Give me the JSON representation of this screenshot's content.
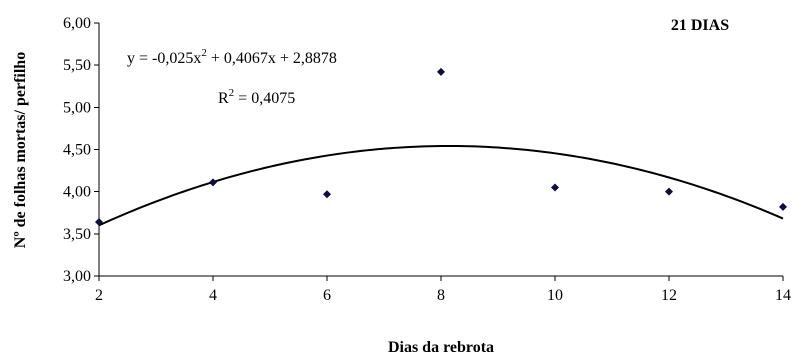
{
  "chart_data": {
    "type": "scatter",
    "panel_label": "21 DIAS",
    "xlabel": "Dias da rebrota",
    "ylabel": "Nº de folhas mortas/ perfilho",
    "xlim": [
      2,
      14
    ],
    "ylim": [
      3.0,
      6.0
    ],
    "x_ticks": [
      2,
      4,
      6,
      8,
      10,
      12,
      14
    ],
    "x_tick_labels": [
      "2",
      "4",
      "6",
      "8",
      "10",
      "12",
      "14"
    ],
    "y_ticks": [
      3.0,
      3.5,
      4.0,
      4.5,
      5.0,
      5.5,
      6.0
    ],
    "y_tick_labels": [
      "3,00",
      "3,50",
      "4,00",
      "4,50",
      "5,00",
      "5,50",
      "6,00"
    ],
    "grid": false,
    "legend": "none",
    "series": [
      {
        "marker": "diamond",
        "color": "#0d0d45",
        "x": [
          2,
          4,
          6,
          8,
          10,
          12,
          14
        ],
        "y": [
          3.64,
          4.11,
          3.97,
          5.42,
          4.05,
          4.0,
          3.82
        ]
      }
    ],
    "trendline": {
      "type": "polynomial",
      "coefficients": {
        "a": -0.025,
        "b": 0.4067,
        "c": 2.8878
      },
      "color": "#000000"
    },
    "equation": {
      "prefix": "y = -0,025x",
      "exp": "2",
      "suffix": " + 0,4067x + 2,8878",
      "r2_prefix": "R",
      "r2_exp": "2",
      "r2_suffix": " = 0,4075"
    }
  }
}
